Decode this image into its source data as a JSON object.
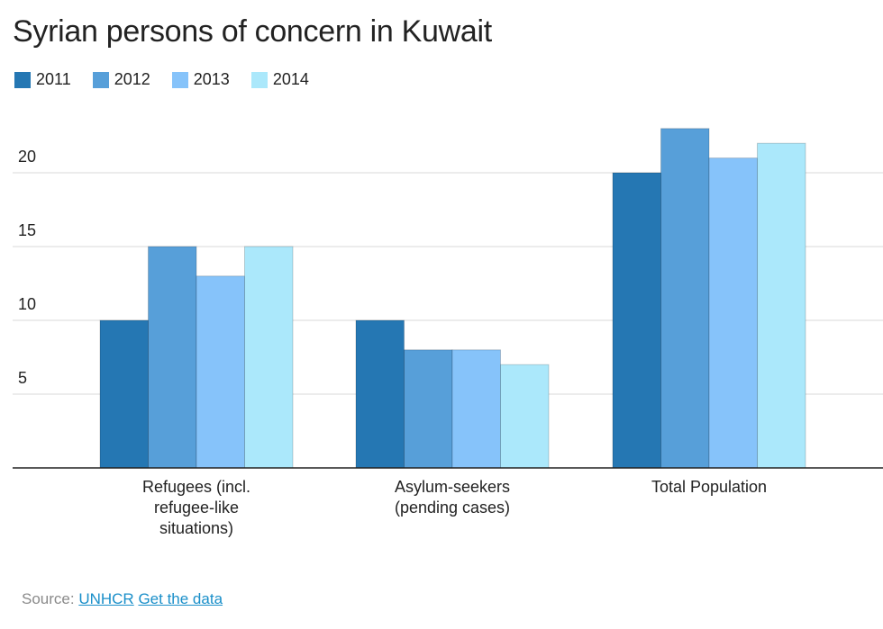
{
  "chart_data": {
    "type": "bar",
    "title": "Syrian persons of concern in Kuwait",
    "categories": [
      [
        "Refugees (incl.",
        "refugee-like",
        "situations)"
      ],
      [
        "Asylum-seekers",
        "(pending cases)"
      ],
      [
        "Total Population"
      ]
    ],
    "series": [
      {
        "name": "2011",
        "color": "#2577b3",
        "values": [
          10,
          10,
          20
        ]
      },
      {
        "name": "2012",
        "color": "#579fd9",
        "values": [
          15,
          8,
          23
        ]
      },
      {
        "name": "2013",
        "color": "#86c3fa",
        "values": [
          13,
          8,
          21
        ]
      },
      {
        "name": "2014",
        "color": "#abe8fb",
        "values": [
          15,
          7,
          22
        ]
      }
    ],
    "yticks": [
      5,
      10,
      15,
      20
    ],
    "ylim": [
      0,
      25
    ],
    "grid": true,
    "legend_position": "top-left",
    "xlabel": "",
    "ylabel": ""
  },
  "source": {
    "label": "Source:",
    "link1": "UNHCR",
    "link2": "Get the data"
  }
}
